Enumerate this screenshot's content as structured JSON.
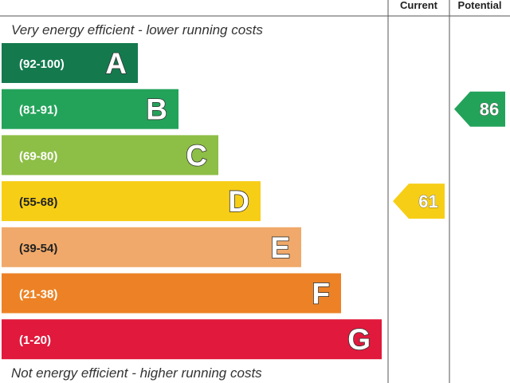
{
  "chart_data": {
    "type": "bar",
    "headers": {
      "current": "Current",
      "potential": "Potential"
    },
    "top_caption": "Very energy efficient - lower running costs",
    "bottom_caption": "Not energy efficient - higher running costs",
    "bands": [
      {
        "letter": "A",
        "range": "(92-100)",
        "color": "#147a4e"
      },
      {
        "letter": "B",
        "range": "(81-91)",
        "color": "#23a35a"
      },
      {
        "letter": "C",
        "range": "(69-80)",
        "color": "#8dbe46"
      },
      {
        "letter": "D",
        "range": "(55-68)",
        "color": "#f7ce16"
      },
      {
        "letter": "E",
        "range": "(39-54)",
        "color": "#f0a96a"
      },
      {
        "letter": "F",
        "range": "(21-38)",
        "color": "#ec8225"
      },
      {
        "letter": "G",
        "range": "(1-20)",
        "color": "#e1193c"
      }
    ],
    "current": {
      "value": 61,
      "band": "D",
      "color": "#f7ce16"
    },
    "potential": {
      "value": 86,
      "band": "B",
      "color": "#23a35a"
    }
  }
}
